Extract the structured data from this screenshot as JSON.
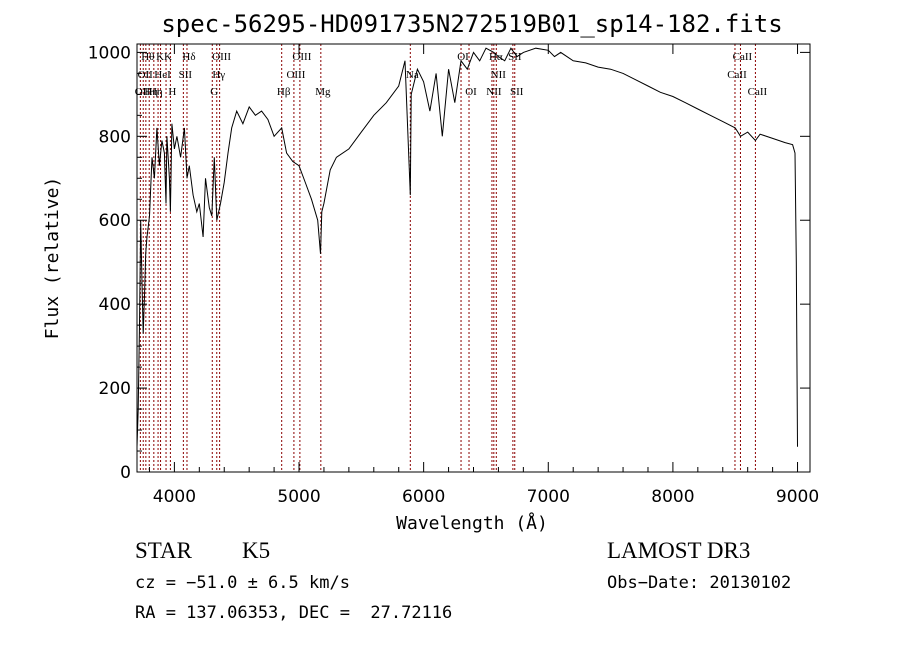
{
  "chart_data": {
    "type": "line",
    "title": "spec-56295-HD091735N272519B01_sp14-182.fits",
    "xlabel": "Wavelength (Å)",
    "ylabel": "Flux (relative)",
    "xlim": [
      3700,
      9100
    ],
    "ylim": [
      0,
      1020
    ],
    "xticks": [
      4000,
      5000,
      6000,
      7000,
      8000,
      9000
    ],
    "yticks": [
      0,
      200,
      400,
      600,
      800,
      1000
    ],
    "grid": false,
    "series": [
      {
        "color": "#000000",
        "x": [
          3700,
          3710,
          3720,
          3730,
          3740,
          3750,
          3760,
          3770,
          3780,
          3800,
          3820,
          3840,
          3860,
          3880,
          3900,
          3920,
          3933,
          3940,
          3960,
          3968,
          3980,
          4000,
          4020,
          4050,
          4080,
          4101,
          4120,
          4150,
          4180,
          4200,
          4230,
          4250,
          4280,
          4300,
          4320,
          4340,
          4370,
          4400,
          4430,
          4460,
          4500,
          4550,
          4600,
          4650,
          4700,
          4750,
          4800,
          4861,
          4900,
          4950,
          5000,
          5050,
          5100,
          5150,
          5172,
          5183,
          5200,
          5250,
          5300,
          5400,
          5500,
          5600,
          5700,
          5800,
          5850,
          5893,
          5900,
          5950,
          6000,
          6050,
          6100,
          6150,
          6200,
          6250,
          6300,
          6350,
          6400,
          6450,
          6500,
          6563,
          6600,
          6650,
          6700,
          6750,
          6800,
          6900,
          7000,
          7050,
          7100,
          7200,
          7300,
          7400,
          7500,
          7600,
          7700,
          7800,
          7900,
          8000,
          8100,
          8200,
          8300,
          8400,
          8500,
          8542,
          8600,
          8662,
          8700,
          8800,
          8900,
          8960,
          8980,
          8990,
          9000
        ],
        "y": [
          60,
          150,
          350,
          600,
          450,
          330,
          420,
          520,
          560,
          610,
          750,
          700,
          820,
          730,
          790,
          760,
          640,
          800,
          700,
          620,
          830,
          770,
          800,
          750,
          820,
          700,
          730,
          660,
          620,
          640,
          560,
          700,
          630,
          610,
          750,
          600,
          640,
          690,
          760,
          820,
          860,
          830,
          870,
          850,
          860,
          840,
          800,
          820,
          760,
          740,
          730,
          690,
          650,
          600,
          520,
          620,
          640,
          720,
          750,
          770,
          810,
          850,
          880,
          920,
          980,
          660,
          900,
          960,
          930,
          860,
          950,
          800,
          960,
          880,
          980,
          960,
          1000,
          980,
          1010,
          1000,
          990,
          980,
          1010,
          990,
          1000,
          1010,
          1005,
          990,
          1000,
          980,
          975,
          965,
          960,
          950,
          935,
          920,
          905,
          895,
          880,
          865,
          850,
          835,
          820,
          800,
          810,
          790,
          805,
          795,
          785,
          780,
          760,
          500,
          60
        ]
      }
    ],
    "lines": [
      {
        "x": 3727,
        "top": "OII",
        "row": 2
      },
      {
        "x": 3750,
        "top": "OII",
        "row": 1
      },
      {
        "x": 3771,
        "top": "Hθ",
        "row": 0
      },
      {
        "x": 3798,
        "top": "Hη",
        "row": 2
      },
      {
        "x": 3835,
        "top": "Hη",
        "row": 2
      },
      {
        "x": 3869,
        "top": "K",
        "row": 0
      },
      {
        "x": 3889,
        "top": "HeI",
        "row": 1
      },
      {
        "x": 3933,
        "top": "K",
        "row": 0
      },
      {
        "x": 3968,
        "top": "H",
        "row": 2
      },
      {
        "x": 4072,
        "top": "SII",
        "row": 1
      },
      {
        "x": 4101,
        "top": "Hδ",
        "row": 0
      },
      {
        "x": 4304,
        "top": "G",
        "row": 2
      },
      {
        "x": 4340,
        "top": "Hγ",
        "row": 1
      },
      {
        "x": 4363,
        "top": "OIII",
        "row": 0
      },
      {
        "x": 4861,
        "top": "Hβ",
        "row": 2
      },
      {
        "x": 4959,
        "top": "OIII",
        "row": 1
      },
      {
        "x": 5007,
        "top": "OIII",
        "row": 0
      },
      {
        "x": 5175,
        "top": "Mg",
        "row": 2
      },
      {
        "x": 5893,
        "top": "Na",
        "row": 1
      },
      {
        "x": 6300,
        "top": "OI",
        "row": 0
      },
      {
        "x": 6364,
        "top": "OI",
        "row": 2
      },
      {
        "x": 6548,
        "top": "NII",
        "row": 2
      },
      {
        "x": 6563,
        "top": "Hα",
        "row": 0
      },
      {
        "x": 6583,
        "top": "NII",
        "row": 1
      },
      {
        "x": 6716,
        "top": "SII",
        "row": 0
      },
      {
        "x": 6731,
        "top": "SII",
        "row": 2
      },
      {
        "x": 8498,
        "top": "CaII",
        "row": 1
      },
      {
        "x": 8542,
        "top": "CaII",
        "row": 0
      },
      {
        "x": 8662,
        "top": "CaII",
        "row": 2
      }
    ],
    "line_color": "#8b0000"
  },
  "info": {
    "object_class": "STAR",
    "subclass": "K5",
    "survey": "LAMOST DR3",
    "velocity": "cz = −51.0 ± 6.5 km/s",
    "obs_date": "Obs−Date: 20130102",
    "coords": "RA = 137.06353, DEC =  27.72116"
  }
}
